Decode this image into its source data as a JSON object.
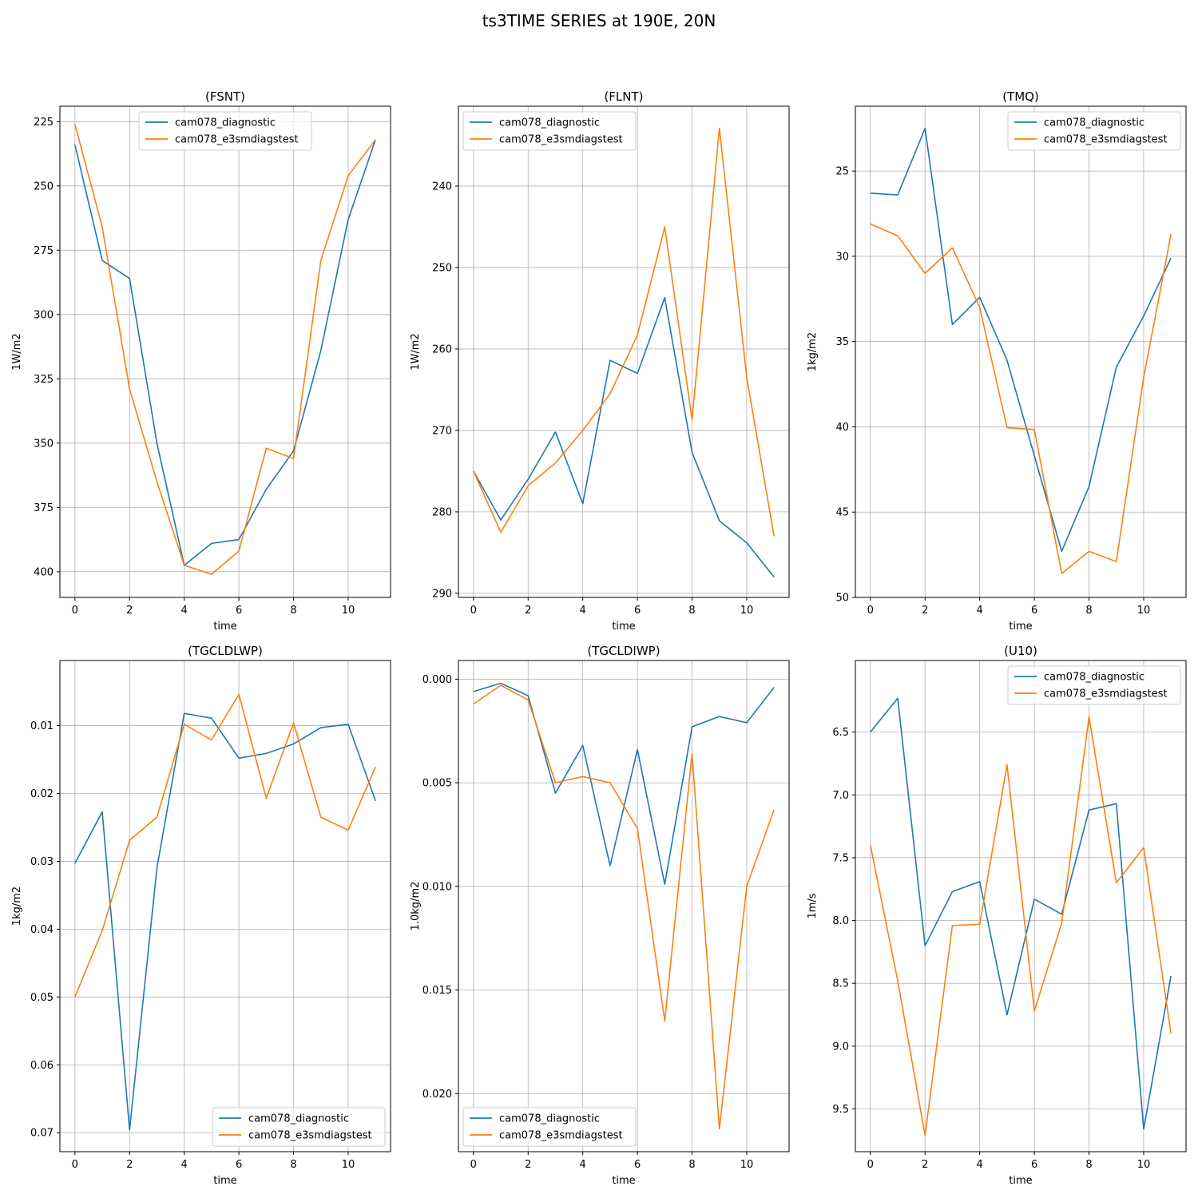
{
  "figure": {
    "title": "ts3TIME SERIES at 190E, 20N"
  },
  "colors": {
    "diagnostic": "#1f77b4",
    "e3smdiagstest": "#ff7f0e",
    "grid": "#b0b0b0"
  },
  "chart_data": [
    {
      "type": "line",
      "title": "(FSNT)",
      "xlabel": "time",
      "ylabel": "1W/m2",
      "x": [
        0,
        1,
        2,
        3,
        4,
        5,
        6,
        7,
        8,
        9,
        10,
        11
      ],
      "xlim": [
        -0.55,
        11.55
      ],
      "ylim": [
        410,
        219
      ],
      "y_inverted": true,
      "xticks": [
        0,
        2,
        4,
        6,
        8,
        10
      ],
      "yticks": [
        225,
        250,
        275,
        300,
        325,
        350,
        375,
        400
      ],
      "ytick_labels": [
        "225",
        "250",
        "275",
        "300",
        "325",
        "350",
        "375",
        "400"
      ],
      "grid": true,
      "legend": "upper center",
      "series": [
        {
          "name": "cam078_diagnostic",
          "values": [
            234,
            279,
            286,
            350,
            397.5,
            389,
            387.5,
            368,
            353,
            314,
            263,
            232
          ]
        },
        {
          "name": "cam078_e3smdiagstest",
          "values": [
            226,
            266,
            329,
            365,
            397.5,
            401,
            392,
            352,
            356,
            279,
            246,
            232
          ]
        }
      ]
    },
    {
      "type": "line",
      "title": "(FLNT)",
      "xlabel": "time",
      "ylabel": "1W/m2",
      "x": [
        0,
        1,
        2,
        3,
        4,
        5,
        6,
        7,
        8,
        9,
        10,
        11
      ],
      "xlim": [
        -0.55,
        11.55
      ],
      "ylim": [
        290.5,
        230.2
      ],
      "y_inverted": true,
      "xticks": [
        0,
        2,
        4,
        6,
        8,
        10
      ],
      "yticks": [
        240,
        250,
        260,
        270,
        280,
        290
      ],
      "ytick_labels": [
        "240",
        "250",
        "260",
        "270",
        "280",
        "290"
      ],
      "grid": true,
      "legend": "upper left",
      "series": [
        {
          "name": "cam078_diagnostic",
          "values": [
            275,
            281,
            276,
            270.2,
            279,
            261.4,
            263,
            253.7,
            272.7,
            281.1,
            283.8,
            288
          ]
        },
        {
          "name": "cam078_e3smdiagstest",
          "values": [
            275,
            282.5,
            276.8,
            274,
            270,
            265.5,
            258.3,
            245,
            268.7,
            232.9,
            263.5,
            283
          ]
        }
      ]
    },
    {
      "type": "line",
      "title": "(TMQ)",
      "xlabel": "time",
      "ylabel": "1kg/m2",
      "x": [
        0,
        1,
        2,
        3,
        4,
        5,
        6,
        7,
        8,
        9,
        10,
        11
      ],
      "xlim": [
        -0.55,
        11.55
      ],
      "ylim": [
        50,
        21.2
      ],
      "y_inverted": true,
      "xticks": [
        0,
        2,
        4,
        6,
        8,
        10
      ],
      "yticks": [
        25,
        30,
        35,
        40,
        45,
        50
      ],
      "ytick_labels": [
        "25",
        "30",
        "35",
        "40",
        "45",
        "50"
      ],
      "grid": true,
      "legend": "upper right",
      "series": [
        {
          "name": "cam078_diagnostic",
          "values": [
            26.3,
            26.4,
            22.5,
            34,
            32.4,
            36.1,
            41.7,
            47.3,
            43.5,
            36.5,
            33.5,
            30.1
          ]
        },
        {
          "name": "cam078_e3smdiagstest",
          "values": [
            28.1,
            28.8,
            31,
            29.5,
            33,
            40.05,
            40.15,
            48.6,
            47.3,
            47.9,
            37.1,
            28.7
          ]
        }
      ]
    },
    {
      "type": "line",
      "title": "(TGCLDLWP)",
      "xlabel": "time",
      "ylabel": "1kg/m2",
      "x": [
        0,
        1,
        2,
        3,
        4,
        5,
        6,
        7,
        8,
        9,
        10,
        11
      ],
      "xlim": [
        -0.55,
        11.55
      ],
      "ylim": [
        0.0728,
        0.0004
      ],
      "y_inverted": true,
      "xticks": [
        0,
        2,
        4,
        6,
        8,
        10
      ],
      "yticks": [
        0.01,
        0.02,
        0.03,
        0.04,
        0.05,
        0.06,
        0.07
      ],
      "ytick_labels": [
        "0.01",
        "0.02",
        "0.03",
        "0.04",
        "0.05",
        "0.06",
        "0.07"
      ],
      "grid": true,
      "legend": "lower right",
      "series": [
        {
          "name": "cam078_diagnostic",
          "values": [
            0.0303,
            0.0227,
            0.0696,
            0.031,
            0.0082,
            0.0089,
            0.0148,
            0.0141,
            0.0127,
            0.0103,
            0.0098,
            0.0211
          ]
        },
        {
          "name": "cam078_e3smdiagstest",
          "values": [
            0.05,
            0.0402,
            0.0269,
            0.0235,
            0.0098,
            0.0121,
            0.0054,
            0.0207,
            0.0096,
            0.0235,
            0.0254,
            0.0161
          ]
        }
      ]
    },
    {
      "type": "line",
      "title": "(TGCLDIWP)",
      "xlabel": "time",
      "ylabel": "1.0kg/m2",
      "x": [
        0,
        1,
        2,
        3,
        4,
        5,
        6,
        7,
        8,
        9,
        10,
        11
      ],
      "xlim": [
        -0.55,
        11.55
      ],
      "ylim": [
        0.0228,
        -0.0009
      ],
      "y_inverted": true,
      "xticks": [
        0,
        2,
        4,
        6,
        8,
        10
      ],
      "yticks": [
        0,
        0.005,
        0.01,
        0.015,
        0.02
      ],
      "ytick_labels": [
        "0.000",
        "0.005",
        "0.010",
        "0.015",
        "0.020"
      ],
      "grid": true,
      "legend": "lower left",
      "series": [
        {
          "name": "cam078_diagnostic",
          "values": [
            0.0006,
            0.0002,
            0.0008,
            0.0055,
            0.0032,
            0.009,
            0.0034,
            0.0099,
            0.0023,
            0.0018,
            0.0021,
            0.0004
          ]
        },
        {
          "name": "cam078_e3smdiagstest",
          "values": [
            0.0012,
            0.0003,
            0.001,
            0.005,
            0.0047,
            0.005,
            0.0072,
            0.0165,
            0.0036,
            0.0217,
            0.01,
            0.0063
          ]
        }
      ]
    },
    {
      "type": "line",
      "title": "(U10)",
      "xlabel": "time",
      "ylabel": "1m/s",
      "x": [
        0,
        1,
        2,
        3,
        4,
        5,
        6,
        7,
        8,
        9,
        10,
        11
      ],
      "xlim": [
        -0.55,
        11.55
      ],
      "ylim": [
        9.84,
        5.93
      ],
      "y_inverted": true,
      "xticks": [
        0,
        2,
        4,
        6,
        8,
        10
      ],
      "yticks": [
        6.5,
        7.0,
        7.5,
        8.0,
        8.5,
        9.0,
        9.5
      ],
      "ytick_labels": [
        "6.5",
        "7.0",
        "7.5",
        "8.0",
        "8.5",
        "9.0",
        "9.5"
      ],
      "grid": true,
      "legend": "upper right",
      "series": [
        {
          "name": "cam078_diagnostic",
          "values": [
            6.5,
            6.23,
            8.2,
            7.77,
            7.69,
            8.75,
            7.83,
            7.95,
            7.12,
            7.07,
            9.66,
            8.44
          ]
        },
        {
          "name": "cam078_e3smdiagstest",
          "values": [
            7.4,
            8.48,
            9.71,
            8.04,
            8.03,
            6.76,
            8.72,
            8.02,
            6.38,
            7.7,
            7.42,
            8.9
          ]
        }
      ]
    }
  ]
}
